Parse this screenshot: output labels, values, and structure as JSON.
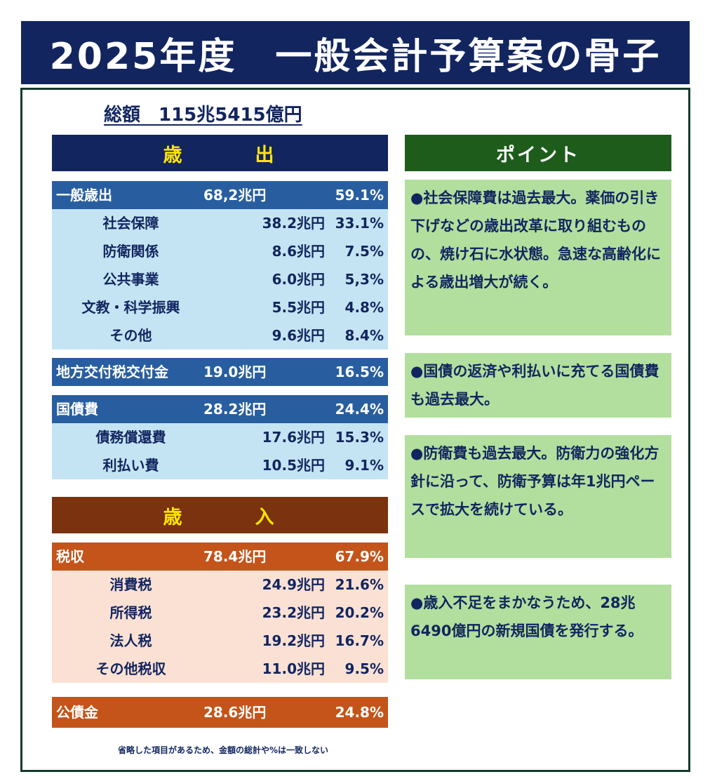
{
  "title": "2025年度　一般会計予算案の骨子",
  "total": "総額　115兆5415億円",
  "expenditure": {
    "header_left": "歳",
    "header_right": "出",
    "sections": [
      {
        "main": {
          "label": "一般歳出",
          "amount": "68,2兆円",
          "pct": "59.1%"
        },
        "items": [
          {
            "label": "社会保障",
            "amount": "38.2兆円",
            "pct": "33.1%"
          },
          {
            "label": "防衛関係",
            "amount": "8.6兆円",
            "pct": "7.5%"
          },
          {
            "label": "公共事業",
            "amount": "6.0兆円",
            "pct": "5,3%"
          },
          {
            "label": "文教・科学振興",
            "amount": "5.5兆円",
            "pct": "4.8%"
          },
          {
            "label": "その他",
            "amount": "9.6兆円",
            "pct": "8.4%"
          }
        ]
      },
      {
        "main": {
          "label": "地方交付税交付金",
          "amount": "19.0兆円",
          "pct": "16.5%"
        },
        "items": []
      },
      {
        "main": {
          "label": "国債費",
          "amount": "28.2兆円",
          "pct": "24.4%"
        },
        "items": [
          {
            "label": "債務償還費",
            "amount": "17.6兆円",
            "pct": "15.3%"
          },
          {
            "label": "利払い費",
            "amount": "10.5兆円",
            "pct": "9.1%"
          }
        ]
      }
    ]
  },
  "revenue": {
    "header_left": "歳",
    "header_right": "入",
    "sections": [
      {
        "main": {
          "label": "税収",
          "amount": "78.4兆円",
          "pct": "67.9%"
        },
        "items": [
          {
            "label": "消費税",
            "amount": "24.9兆円",
            "pct": "21.6%"
          },
          {
            "label": "所得税",
            "amount": "23.2兆円",
            "pct": "20.2%"
          },
          {
            "label": "法人税",
            "amount": "19.2兆円",
            "pct": "16.7%"
          },
          {
            "label": "その他税収",
            "amount": "11.0兆円",
            "pct": "9.5%"
          }
        ]
      },
      {
        "main": {
          "label": "公債金",
          "amount": "28.6兆円",
          "pct": "24.8%"
        },
        "items": []
      }
    ]
  },
  "points": {
    "header": "ポイント",
    "items": [
      "●社会保障費は過去最大。薬価の引き下げなどの歳出改革に取り組むものの、焼け石に水状態。急速な高齢化による歳出増大が続く。",
      "●国債の返済や利払いに充てる国債費も過去最大。",
      "●防衛費も過去最大。防衛力の強化方針に沿って、防衛予算は年1兆円ペースで拡大を続けている。",
      "●歳入不足をまかなうため、28兆6490億円の新規国債を発行する。"
    ]
  },
  "footnote": "省略した項目があるため、金額の総計や%は一致しない"
}
